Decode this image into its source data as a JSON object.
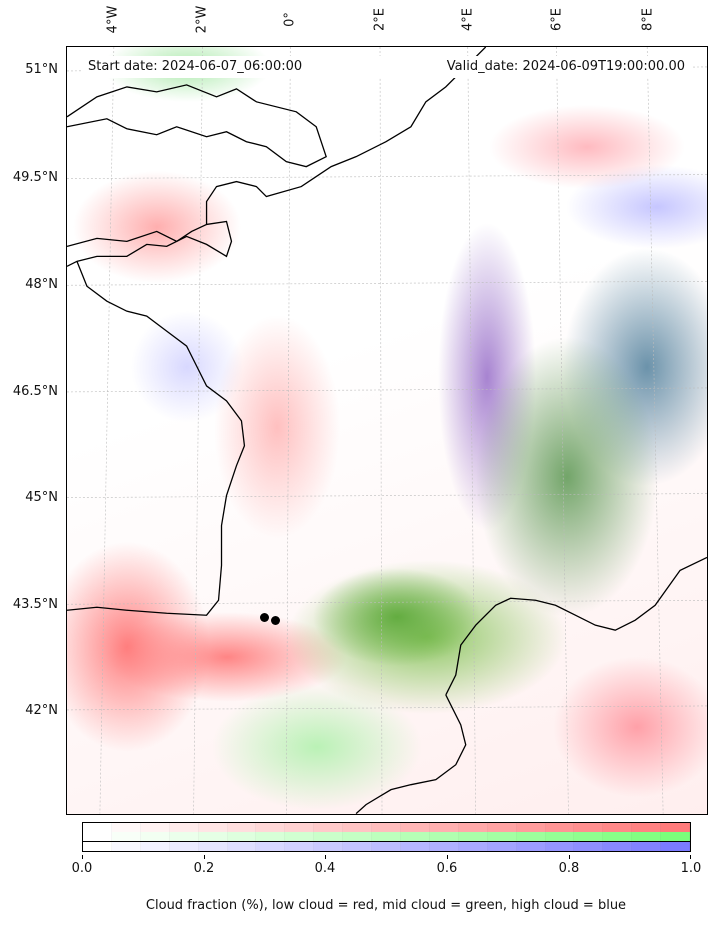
{
  "map": {
    "start_date": "Start date: 2024-06-07_06:00:00",
    "valid_date": "Valid_date: 2024-06-09T19:00:00.00",
    "lon_labels": [
      "4°W",
      "2°W",
      "0°",
      "2°E",
      "4°E",
      "6°E",
      "8°E"
    ],
    "lat_labels": [
      "51°N",
      "49.5°N",
      "48°N",
      "46.5°N",
      "45°N",
      "43.5°N",
      "42°N"
    ],
    "markers": 2
  },
  "colorbar": {
    "ticks": [
      "0.0",
      "0.2",
      "0.4",
      "0.6",
      "0.8",
      "1.0"
    ],
    "label": "Cloud fraction (%), low cloud = red, mid cloud = green, high cloud = blue",
    "rows": [
      {
        "name": "low-cloud",
        "color": "#ff7b7b"
      },
      {
        "name": "mid-cloud",
        "color": "#7bff7b"
      },
      {
        "name": "high-cloud",
        "color": "#7b7bff"
      }
    ],
    "steps": 21
  }
}
